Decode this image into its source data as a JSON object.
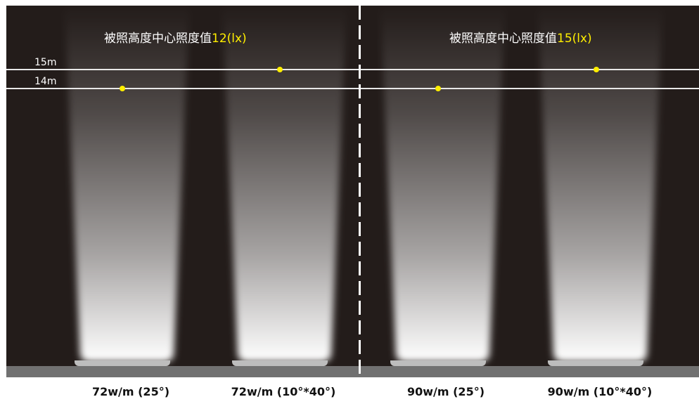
{
  "panels": [
    {
      "title_text": "被照高度中心照度值",
      "title_value": "12(lx)"
    },
    {
      "title_text": "被照高度中心照度值",
      "title_value": "15(lx)"
    }
  ],
  "height_lines": [
    {
      "label": "15m"
    },
    {
      "label": "14m"
    }
  ],
  "fixtures": [
    {
      "caption": "72w/m (25°)",
      "beam_angle": "25°"
    },
    {
      "caption": "72w/m (10°*40°)",
      "beam_angle": "10°*40°"
    },
    {
      "caption": "90w/m (25°)",
      "beam_angle": "25°"
    },
    {
      "caption": "90w/m (10°*40°)",
      "beam_angle": "10°*40°"
    }
  ],
  "colors": {
    "background": "#231c1a",
    "highlight": "#ffee00",
    "floor": "#717171",
    "line": "#e8e8e8"
  }
}
